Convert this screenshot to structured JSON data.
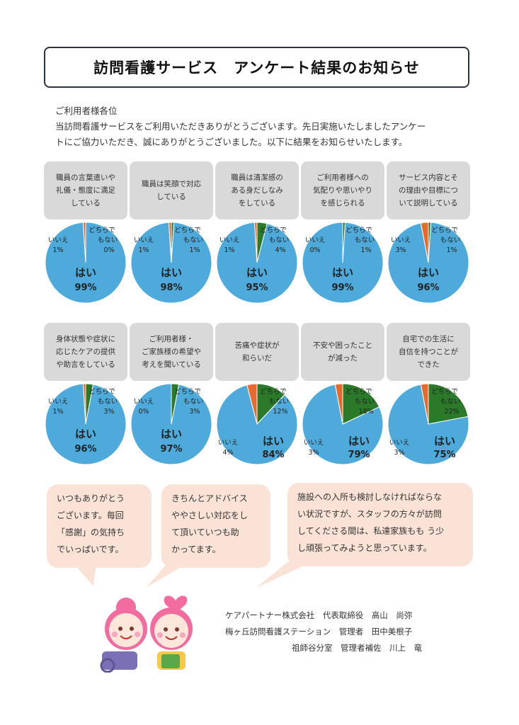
{
  "title": "訪問看護サービス　アンケート結果のお知らせ",
  "intro": {
    "salutation": "ご利用者様各位",
    "line1": "当訪問看護サービスをご利用いただきありがとうございます。先日実施いたしましたアンケー",
    "line2": "トにご協力いただき、誠にありがとうございました。以下に結果をお知らせいたします。"
  },
  "colors": {
    "yes": "#4eaadb",
    "no": "#e8692e",
    "neither": "#2a7a2a",
    "label_bg": "#d9d9d9",
    "bubble_bg": "#fbe2d6"
  },
  "legend": {
    "yes": "はい",
    "no": "いいえ",
    "neither_1": "どちらで",
    "neither_2": "もない"
  },
  "chart_data": [
    {
      "type": "pie",
      "title_lines": [
        "職員の言葉遣いや",
        "礼儀・態度に満足",
        "している"
      ],
      "categories": [
        "はい",
        "いいえ",
        "どちらでもない"
      ],
      "values": [
        99,
        1,
        0
      ],
      "labels": [
        "99%",
        "1%",
        "0%"
      ]
    },
    {
      "type": "pie",
      "title_lines": [
        "職員は笑顔で対応",
        "している"
      ],
      "categories": [
        "はい",
        "いいえ",
        "どちらでもない"
      ],
      "values": [
        98,
        1,
        1
      ],
      "labels": [
        "98%",
        "1%",
        "1%"
      ]
    },
    {
      "type": "pie",
      "title_lines": [
        "職員は清潔感の",
        "ある身だしなみ",
        "をしている"
      ],
      "categories": [
        "はい",
        "いいえ",
        "どちらでもない"
      ],
      "values": [
        95,
        1,
        4
      ],
      "labels": [
        "95%",
        "1%",
        "4%"
      ]
    },
    {
      "type": "pie",
      "title_lines": [
        "ご利用者様への",
        "気配りや思いやり",
        "を感じられる"
      ],
      "categories": [
        "はい",
        "いいえ",
        "どちらでもない"
      ],
      "values": [
        99,
        0,
        1
      ],
      "labels": [
        "99%",
        "0%",
        "1%"
      ]
    },
    {
      "type": "pie",
      "title_lines": [
        "サービス内容とそ",
        "の理由や目標につ",
        "いて説明している"
      ],
      "categories": [
        "はい",
        "いいえ",
        "どちらでもない"
      ],
      "values": [
        96,
        3,
        1
      ],
      "labels": [
        "96%",
        "3%",
        "1%"
      ]
    },
    {
      "type": "pie",
      "title_lines": [
        "身体状態や症状に",
        "応じたケアの提供",
        "や助言をしている"
      ],
      "categories": [
        "はい",
        "いいえ",
        "どちらでもない"
      ],
      "values": [
        96,
        1,
        3
      ],
      "labels": [
        "96%",
        "1%",
        "3%"
      ]
    },
    {
      "type": "pie",
      "title_lines": [
        "ご利用者様・",
        "ご家族様の希望や",
        "考えを聞いている"
      ],
      "categories": [
        "はい",
        "いいえ",
        "どちらでもない"
      ],
      "values": [
        97,
        0,
        3
      ],
      "labels": [
        "97%",
        "0%",
        "3%"
      ]
    },
    {
      "type": "pie",
      "title_lines": [
        "苦痛や症状が",
        "和らいだ"
      ],
      "categories": [
        "はい",
        "いいえ",
        "どちらでもない"
      ],
      "values": [
        84,
        4,
        12
      ],
      "labels": [
        "84%",
        "4%",
        "12%"
      ]
    },
    {
      "type": "pie",
      "title_lines": [
        "不安や困ったこと",
        "が減った"
      ],
      "categories": [
        "はい",
        "いいえ",
        "どちらでもない"
      ],
      "values": [
        79,
        3,
        18
      ],
      "labels": [
        "79%",
        "3%",
        "18%"
      ]
    },
    {
      "type": "pie",
      "title_lines": [
        "自宅での生活に",
        "自信を持つことが",
        "できた"
      ],
      "categories": [
        "はい",
        "いいえ",
        "どちらでもない"
      ],
      "values": [
        75,
        3,
        22
      ],
      "labels": [
        "75%",
        "3%",
        "22%"
      ]
    }
  ],
  "comments": [
    {
      "lines": [
        "いつもありがとう",
        "ございます。毎回",
        "「感謝」の気持ち",
        "でいっぱいです。"
      ]
    },
    {
      "lines": [
        "きちんとアドバイス",
        "ややさしい対応をし",
        "て頂いていつも助",
        "かってます。"
      ]
    },
    {
      "lines": [
        "施設への入所も検討しなければならな",
        "い状況ですが、スタッフの方々が訪問",
        "してくださる間は、私達家族もも う少",
        "し頑張ってみようと思っています。"
      ]
    }
  ],
  "footer": {
    "line1": "ケアパートナー株式会社　代表取締役　高山　尚弥",
    "line2": "梅ヶ丘訪問看護ステーション　管理者　田中美根子",
    "line3": "祖師谷分室　管理者補佐　川上　竜"
  }
}
